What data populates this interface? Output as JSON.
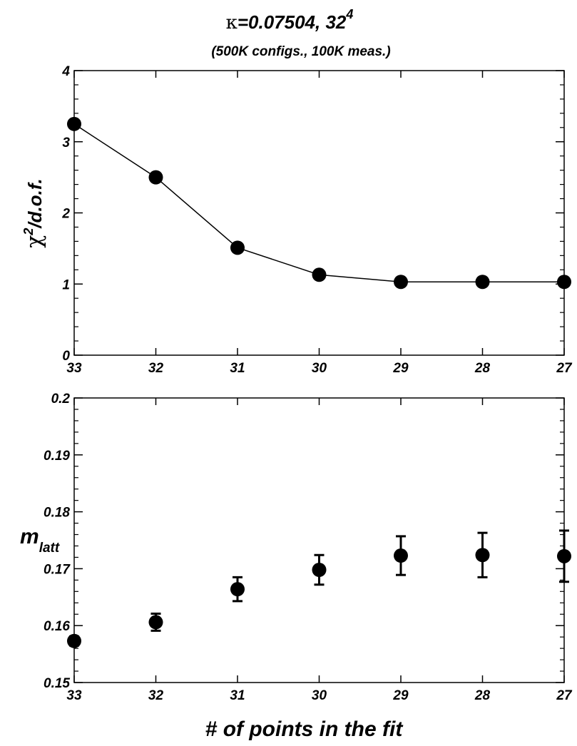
{
  "title": {
    "kappa_symbol": "κ",
    "kappa_value": "=0.07504, 32",
    "exponent": "4",
    "subtitle": "(500K configs.,  100K meas.)"
  },
  "xlabel": "# of points in the fit",
  "chart_data": [
    {
      "type": "line",
      "ylabel_base": "χ",
      "ylabel_exp": "2",
      "ylabel_rest": "/d.o.f.",
      "xlim": [
        33,
        27
      ],
      "ylim": [
        0,
        4
      ],
      "x_ticks": [
        "33",
        "32",
        "31",
        "30",
        "29",
        "28",
        "27"
      ],
      "y_ticks": [
        "0",
        "1",
        "2",
        "3",
        "4"
      ],
      "x": [
        33,
        32,
        31,
        30,
        29,
        28,
        27
      ],
      "y": [
        3.25,
        2.5,
        1.51,
        1.13,
        1.03,
        1.03,
        1.03
      ],
      "marker": "circle",
      "connected": true
    },
    {
      "type": "scatter",
      "ylabel_base": "m",
      "ylabel_sub": "latt",
      "xlim": [
        33,
        27
      ],
      "ylim": [
        0.15,
        0.2
      ],
      "x_ticks": [
        "33",
        "32",
        "31",
        "30",
        "29",
        "28",
        "27"
      ],
      "y_ticks": [
        "0.15",
        "0.16",
        "0.17",
        "0.18",
        "0.19",
        "0.2"
      ],
      "x": [
        33,
        32,
        31,
        30,
        29,
        28,
        27
      ],
      "y": [
        0.1573,
        0.1606,
        0.1664,
        0.1698,
        0.1723,
        0.1724,
        0.1722
      ],
      "yerr": [
        0.0008,
        0.0015,
        0.0021,
        0.0026,
        0.0034,
        0.0039,
        0.0045
      ],
      "marker": "circle",
      "connected": false
    }
  ]
}
